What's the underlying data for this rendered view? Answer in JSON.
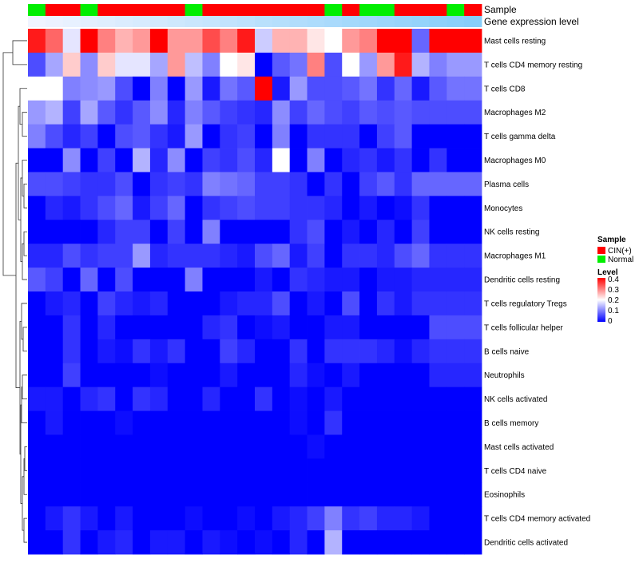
{
  "chart_data": {
    "type": "heatmap",
    "title": "",
    "xlabel": "",
    "ylabel": "",
    "rows": [
      "Mast cells resting",
      "T cells CD4 memory resting",
      "T cells CD8",
      "Macrophages M2",
      "T cells gamma delta",
      "Macrophages M0",
      "Plasma cells",
      "Monocytes",
      "NK cells resting",
      "Macrophages M1",
      "Dendritic cells resting",
      "T cells regulatory  Tregs",
      "T cells follicular helper",
      "B cells naive",
      "Neutrophils",
      "NK cells activated",
      "B cells memory",
      "Mast cells activated",
      "T cells CD4 naive",
      "Eosinophils",
      "T cells CD4 memory activated",
      "Dendritic cells activated"
    ],
    "annotations": [
      {
        "name": "Sample",
        "values": [
          "Normal",
          "CIN(+)",
          "CIN(+)",
          "Normal",
          "CIN(+)",
          "CIN(+)",
          "CIN(+)",
          "CIN(+)",
          "CIN(+)",
          "Normal",
          "CIN(+)",
          "CIN(+)",
          "CIN(+)",
          "CIN(+)",
          "CIN(+)",
          "CIN(+)",
          "CIN(+)",
          "Normal",
          "CIN(+)",
          "Normal",
          "Normal",
          "CIN(+)",
          "CIN(+)",
          "CIN(+)",
          "Normal",
          "CIN(+)"
        ]
      },
      {
        "name": "Gene expression level",
        "values": [
          0.1,
          0.12,
          0.14,
          0.16,
          0.18,
          0.2,
          0.22,
          0.24,
          0.26,
          0.28,
          0.3,
          0.32,
          0.34,
          0.36,
          0.38,
          0.4,
          0.42,
          0.44,
          0.46,
          0.48,
          0.5,
          0.52,
          0.54,
          0.56,
          0.58,
          0.6
        ]
      }
    ],
    "values": [
      [
        0.38,
        0.32,
        0.18,
        0.4,
        0.3,
        0.26,
        0.28,
        0.4,
        0.28,
        0.28,
        0.34,
        0.3,
        0.38,
        0.16,
        0.26,
        0.26,
        0.22,
        0.2,
        0.28,
        0.3,
        0.4,
        0.4,
        0.08,
        0.4,
        0.4,
        0.4
      ],
      [
        0.06,
        0.13,
        0.24,
        0.11,
        0.24,
        0.18,
        0.18,
        0.13,
        0.28,
        0.15,
        0.1,
        0.2,
        0.22,
        0.0,
        0.07,
        0.09,
        0.3,
        0.06,
        0.2,
        0.12,
        0.28,
        0.38,
        0.14,
        0.1,
        0.12,
        0.12
      ],
      [
        0.2,
        0.2,
        0.1,
        0.11,
        0.12,
        0.06,
        0.0,
        0.1,
        0.0,
        0.12,
        0.02,
        0.09,
        0.07,
        0.4,
        0.02,
        0.12,
        0.06,
        0.06,
        0.07,
        0.09,
        0.04,
        0.08,
        0.02,
        0.07,
        0.09,
        0.09
      ],
      [
        0.12,
        0.14,
        0.05,
        0.13,
        0.07,
        0.04,
        0.07,
        0.11,
        0.03,
        0.1,
        0.07,
        0.05,
        0.04,
        0.03,
        0.11,
        0.05,
        0.08,
        0.06,
        0.05,
        0.07,
        0.06,
        0.07,
        0.06,
        0.06,
        0.06,
        0.06
      ],
      [
        0.1,
        0.06,
        0.03,
        0.05,
        0.0,
        0.06,
        0.07,
        0.04,
        0.02,
        0.12,
        0.0,
        0.04,
        0.05,
        0.0,
        0.1,
        0.0,
        0.04,
        0.04,
        0.04,
        0.0,
        0.05,
        0.07,
        0.0,
        0.0,
        0.0,
        0.0
      ],
      [
        0.0,
        0.0,
        0.11,
        0.0,
        0.05,
        0.0,
        0.14,
        0.03,
        0.11,
        0.0,
        0.05,
        0.04,
        0.06,
        0.03,
        0.2,
        0.0,
        0.1,
        0.0,
        0.03,
        0.04,
        0.02,
        0.04,
        0.0,
        0.04,
        0.0,
        0.0
      ],
      [
        0.06,
        0.06,
        0.05,
        0.04,
        0.04,
        0.06,
        0.0,
        0.04,
        0.05,
        0.04,
        0.1,
        0.09,
        0.08,
        0.05,
        0.05,
        0.04,
        0.0,
        0.04,
        0.0,
        0.05,
        0.07,
        0.04,
        0.08,
        0.08,
        0.08,
        0.08
      ],
      [
        0.0,
        0.03,
        0.02,
        0.04,
        0.06,
        0.08,
        0.02,
        0.05,
        0.08,
        0.0,
        0.04,
        0.05,
        0.06,
        0.05,
        0.05,
        0.04,
        0.04,
        0.03,
        0.0,
        0.02,
        0.0,
        0.01,
        0.04,
        0.0,
        0.0,
        0.0
      ],
      [
        0.0,
        0.0,
        0.0,
        0.0,
        0.03,
        0.05,
        0.05,
        0.0,
        0.05,
        0.0,
        0.1,
        0.0,
        0.0,
        0.0,
        0.0,
        0.04,
        0.06,
        0.0,
        0.02,
        0.0,
        0.03,
        0.0,
        0.05,
        0.0,
        0.0,
        0.0
      ],
      [
        0.03,
        0.03,
        0.06,
        0.04,
        0.05,
        0.05,
        0.12,
        0.03,
        0.04,
        0.04,
        0.04,
        0.03,
        0.02,
        0.06,
        0.08,
        0.02,
        0.05,
        0.0,
        0.04,
        0.04,
        0.03,
        0.06,
        0.08,
        0.04,
        0.04,
        0.04
      ],
      [
        0.07,
        0.05,
        0.0,
        0.08,
        0.0,
        0.06,
        0.0,
        0.0,
        0.0,
        0.1,
        0.0,
        0.0,
        0.0,
        0.02,
        0.0,
        0.04,
        0.03,
        0.02,
        0.02,
        0.0,
        0.02,
        0.02,
        0.03,
        0.03,
        0.03,
        0.03
      ],
      [
        0.0,
        0.02,
        0.03,
        0.0,
        0.05,
        0.03,
        0.02,
        0.03,
        0.0,
        0.0,
        0.0,
        0.02,
        0.03,
        0.03,
        0.06,
        0.0,
        0.02,
        0.0,
        0.06,
        0.0,
        0.04,
        0.02,
        0.04,
        0.04,
        0.04,
        0.04
      ],
      [
        0.0,
        0.0,
        0.04,
        0.0,
        0.03,
        0.0,
        0.0,
        0.0,
        0.0,
        0.0,
        0.03,
        0.04,
        0.0,
        0.01,
        0.02,
        0.0,
        0.0,
        0.02,
        0.02,
        0.0,
        0.0,
        0.0,
        0.0,
        0.06,
        0.06,
        0.06
      ],
      [
        0.0,
        0.0,
        0.04,
        0.0,
        0.02,
        0.01,
        0.04,
        0.02,
        0.04,
        0.0,
        0.0,
        0.05,
        0.03,
        0.0,
        0.0,
        0.04,
        0.0,
        0.04,
        0.04,
        0.04,
        0.03,
        0.01,
        0.03,
        0.04,
        0.04,
        0.04
      ],
      [
        0.0,
        0.0,
        0.05,
        0.0,
        0.0,
        0.0,
        0.0,
        0.01,
        0.0,
        0.0,
        0.0,
        0.02,
        0.0,
        0.0,
        0.0,
        0.03,
        0.01,
        0.0,
        0.02,
        0.0,
        0.0,
        0.0,
        0.0,
        0.03,
        0.03,
        0.03
      ],
      [
        0.02,
        0.02,
        0.0,
        0.03,
        0.04,
        0.0,
        0.04,
        0.03,
        0.0,
        0.0,
        0.03,
        0.0,
        0.0,
        0.04,
        0.0,
        0.01,
        0.0,
        0.02,
        0.0,
        0.0,
        0.0,
        0.0,
        0.0,
        0.0,
        0.0,
        0.0
      ],
      [
        0.0,
        0.02,
        0.0,
        0.0,
        0.0,
        0.01,
        0.0,
        0.0,
        0.0,
        0.0,
        0.0,
        0.0,
        0.0,
        0.0,
        0.0,
        0.01,
        0.0,
        0.04,
        0.0,
        0.0,
        0.0,
        0.0,
        0.0,
        0.0,
        0.0,
        0.0
      ],
      [
        0.0,
        0.0,
        0.0,
        0.0,
        0.0,
        0.0,
        0.0,
        0.0,
        0.0,
        0.0,
        0.0,
        0.0,
        0.0,
        0.0,
        0.0,
        0.0,
        0.01,
        0.0,
        0.0,
        0.0,
        0.0,
        0.0,
        0.0,
        0.0,
        0.0,
        0.0
      ],
      [
        0.0,
        0.0,
        0.0,
        0.0,
        0.0,
        0.0,
        0.0,
        0.0,
        0.0,
        0.0,
        0.0,
        0.0,
        0.0,
        0.0,
        0.0,
        0.0,
        0.0,
        0.0,
        0.0,
        0.0,
        0.0,
        0.0,
        0.0,
        0.0,
        0.0,
        0.0
      ],
      [
        0.0,
        0.0,
        0.0,
        0.0,
        0.0,
        0.0,
        0.0,
        0.0,
        0.0,
        0.0,
        0.0,
        0.0,
        0.0,
        0.0,
        0.0,
        0.0,
        0.0,
        0.0,
        0.0,
        0.0,
        0.0,
        0.0,
        0.0,
        0.0,
        0.0,
        0.0
      ],
      [
        0.0,
        0.02,
        0.04,
        0.02,
        0.0,
        0.02,
        0.0,
        0.0,
        0.0,
        0.01,
        0.0,
        0.0,
        0.01,
        0.0,
        0.02,
        0.03,
        0.05,
        0.1,
        0.04,
        0.05,
        0.03,
        0.03,
        0.02,
        0.0,
        0.0,
        0.0
      ],
      [
        0.0,
        0.0,
        0.04,
        0.0,
        0.02,
        0.03,
        0.0,
        0.02,
        0.02,
        0.0,
        0.02,
        0.01,
        0.0,
        0.01,
        0.0,
        0.03,
        0.0,
        0.14,
        0.0,
        0.0,
        0.0,
        0.0,
        0.0,
        0.0,
        0.0,
        0.0
      ]
    ],
    "legend": {
      "sample_title": "Sample",
      "sample_items": [
        {
          "label": "CIN(+)",
          "color": "#ff0000"
        },
        {
          "label": "Normal",
          "color": "#00ee00"
        }
      ],
      "level_title": "Level",
      "level_ticks": [
        0.4,
        0.3,
        0.2,
        0.1,
        0
      ]
    },
    "colors": {
      "low": "#0000ff",
      "mid": "#ffffff",
      "high": "#ff0000",
      "expr_low": "#f0f4ff",
      "expr_high": "#87cefa"
    },
    "color_range": [
      0,
      0.4
    ]
  }
}
